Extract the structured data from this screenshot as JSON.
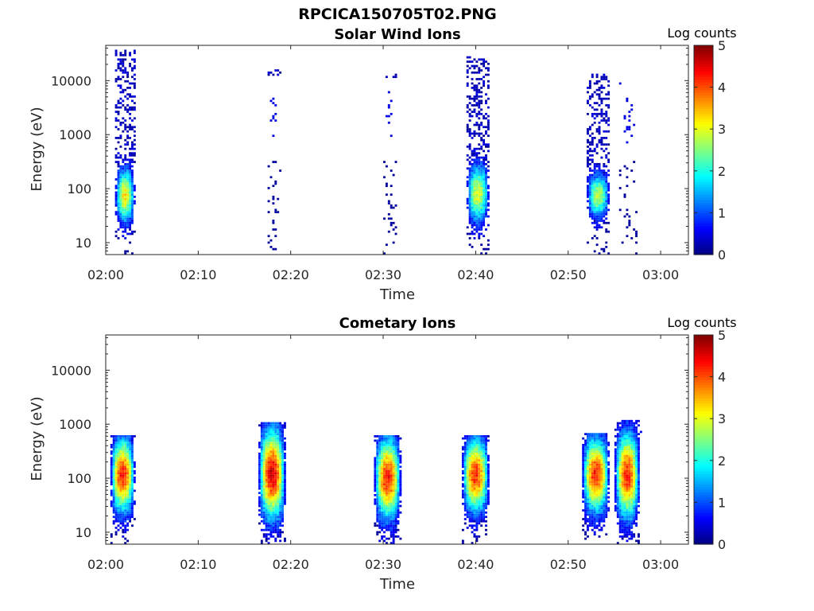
{
  "figure_title": "RPCICA150705T02.PNG",
  "chart_data": [
    {
      "type": "heatmap",
      "title": "Solar Wind Ions",
      "xlabel": "Time",
      "ylabel": "Energy (eV)",
      "x_ticks": [
        "02:00",
        "02:10",
        "02:20",
        "02:30",
        "02:40",
        "02:50",
        "03:00"
      ],
      "x_range_minutes": [
        0,
        63
      ],
      "y_scale": "log",
      "y_ticks": [
        10,
        100,
        1000,
        10000
      ],
      "y_range": [
        6,
        45000
      ],
      "colorbar": {
        "label": "Log counts",
        "ticks": [
          0,
          1,
          2,
          3,
          4,
          5
        ],
        "range": [
          0,
          5
        ],
        "colormap": "jet"
      },
      "bursts": [
        {
          "start_min": 1.0,
          "end_min": 3.2,
          "peak_log_counts": 3.2,
          "core_energy_eV": [
            20,
            250
          ],
          "max_energy_eV": 35000
        },
        {
          "start_min": 17.5,
          "end_min": 19.0,
          "peak_log_counts": 0.3,
          "core_energy_eV": [
            300,
            15000
          ],
          "max_energy_eV": 15000
        },
        {
          "start_min": 30.0,
          "end_min": 31.5,
          "peak_log_counts": 0.3,
          "core_energy_eV": [
            300,
            13000
          ],
          "max_energy_eV": 13000
        },
        {
          "start_min": 39.0,
          "end_min": 41.5,
          "peak_log_counts": 3.0,
          "core_energy_eV": [
            20,
            300
          ],
          "max_energy_eV": 26000
        },
        {
          "start_min": 52.0,
          "end_min": 54.5,
          "peak_log_counts": 2.8,
          "core_energy_eV": [
            25,
            200
          ],
          "max_energy_eV": 13000
        },
        {
          "start_min": 55.5,
          "end_min": 57.5,
          "peak_log_counts": 0.3,
          "core_energy_eV": [
            300,
            9000
          ],
          "max_energy_eV": 9000
        }
      ]
    },
    {
      "type": "heatmap",
      "title": "Cometary Ions",
      "xlabel": "Time",
      "ylabel": "Energy (eV)",
      "x_ticks": [
        "02:00",
        "02:10",
        "02:20",
        "02:30",
        "02:40",
        "02:50",
        "03:00"
      ],
      "x_range_minutes": [
        0,
        63
      ],
      "y_scale": "log",
      "y_ticks": [
        10,
        100,
        1000,
        10000
      ],
      "y_range": [
        6,
        45000
      ],
      "colorbar": {
        "label": "Log counts",
        "ticks": [
          0,
          1,
          2,
          3,
          4,
          5
        ],
        "range": [
          0,
          5
        ],
        "colormap": "jet"
      },
      "bursts": [
        {
          "start_min": 0.5,
          "end_min": 3.2,
          "peak_log_counts": 4.3,
          "core_energy_eV": [
            20,
            600
          ],
          "max_energy_eV": 600
        },
        {
          "start_min": 16.5,
          "end_min": 19.5,
          "peak_log_counts": 4.6,
          "core_energy_eV": [
            15,
            900
          ],
          "max_energy_eV": 1000
        },
        {
          "start_min": 29.0,
          "end_min": 32.0,
          "peak_log_counts": 4.3,
          "core_energy_eV": [
            15,
            600
          ],
          "max_energy_eV": 600
        },
        {
          "start_min": 38.5,
          "end_min": 41.5,
          "peak_log_counts": 4.2,
          "core_energy_eV": [
            20,
            600
          ],
          "max_energy_eV": 600
        },
        {
          "start_min": 51.5,
          "end_min": 54.5,
          "peak_log_counts": 4.3,
          "core_energy_eV": [
            20,
            600
          ],
          "max_energy_eV": 650
        },
        {
          "start_min": 55.0,
          "end_min": 57.8,
          "peak_log_counts": 4.2,
          "core_energy_eV": [
            15,
            800
          ],
          "max_energy_eV": 1100
        }
      ]
    }
  ]
}
